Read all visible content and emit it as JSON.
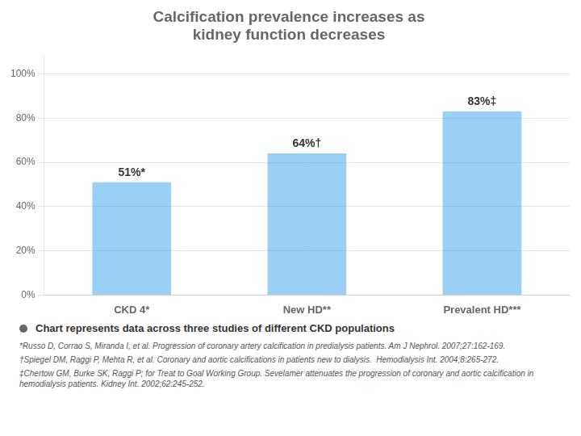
{
  "chart_data": {
    "type": "bar",
    "title": "Calcification prevalence increases as\nkidney function decreases",
    "categories": [
      "CKD 4*",
      "New HD**",
      "Prevalent HD***"
    ],
    "values": [
      51,
      64,
      83
    ],
    "value_labels": [
      "51%*",
      "64%†",
      "83%‡"
    ],
    "data_labels": true,
    "ylim": [
      0,
      108
    ],
    "yticks": [
      {
        "value": 0,
        "label": "0%"
      },
      {
        "value": 20,
        "label": "20%"
      },
      {
        "value": 40,
        "label": "40%"
      },
      {
        "value": 60,
        "label": "60%"
      },
      {
        "value": 80,
        "label": "80%"
      },
      {
        "value": 100,
        "label": "100%"
      }
    ],
    "grid": true,
    "annotations": [
      "Chart represents data across three studies of different CKD populations",
      "*Russo D, Corrao S, Miranda I, et al. Progression of coronary artery calcification in predialysis patients. Am J Nephrol. 2007;27:162-169.",
      "†Spiegel DM, Raggi P, Mehta R, et al. Coronary and aortic calcifications in patients new to dialysis.  Hemodialysis Int. 2004;8:265-272.",
      "‡Chertow GM, Burke SK, Raggi P; for Treat to Goal Working Group. Sevelamer attenuates the progression of coronary and aortic calcification in hemodialysis patients. Kidney Int. 2002;62:245-252."
    ]
  }
}
